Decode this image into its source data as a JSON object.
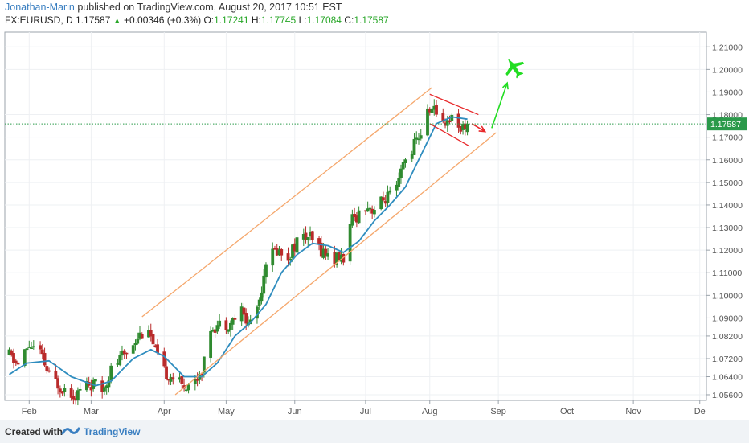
{
  "header": {
    "author": "Jonathan-Marin",
    "published": "published on TradingView.com, August 20, 2017 10:51 EST",
    "symbol": "FX:EURUSD, D",
    "last": "1.17587",
    "change": "+0.00346 (+0.3%)",
    "o_label": "O:",
    "o": "1.17241",
    "h_label": "H:",
    "h": "1.17745",
    "l_label": "L:",
    "l": "1.17084",
    "c_label": "C:",
    "c": "1.17587"
  },
  "footer": {
    "created_with": "Created with",
    "brand": "TradingView"
  },
  "colors": {
    "up": "#2f8a2f",
    "down": "#b92a2a",
    "ma": "#2f8dbf",
    "channel": "#f5a76c",
    "flag": "#e8282a",
    "green_annotation": "#22dd22",
    "price_tag": "#2a9a4a"
  },
  "chart_data": {
    "type": "candlestick",
    "symbol": "EURUSD",
    "timeframe": "D",
    "y_axis_side": "right",
    "ylim": [
      1.0535,
      1.2165
    ],
    "y_ticks": [
      "1.21000",
      "1.20000",
      "1.19000",
      "1.18000",
      "1.17000",
      "1.16000",
      "1.15000",
      "1.14000",
      "1.13000",
      "1.12000",
      "1.11000",
      "1.10000",
      "1.09000",
      "1.08200",
      "1.07200",
      "1.06400",
      "1.05600"
    ],
    "x_ticks": [
      {
        "label": "Feb",
        "date": "2017-02-01"
      },
      {
        "label": "Mar",
        "date": "2017-03-01"
      },
      {
        "label": "Apr",
        "date": "2017-04-03"
      },
      {
        "label": "May",
        "date": "2017-05-01"
      },
      {
        "label": "Jun",
        "date": "2017-06-01"
      },
      {
        "label": "Jul",
        "date": "2017-07-03"
      },
      {
        "label": "Aug",
        "date": "2017-08-01"
      },
      {
        "label": "Sep",
        "date": "2017-09-01"
      },
      {
        "label": "Oct",
        "date": "2017-10-02"
      },
      {
        "label": "Nov",
        "date": "2017-11-01"
      },
      {
        "label": "De",
        "date": "2017-12-01"
      }
    ],
    "x_range": [
      "2017-01-21",
      "2017-12-04"
    ],
    "last_price": 1.17587,
    "last_price_label": "1.17587",
    "close_path": [
      [
        "2017-01-23",
        1.0735
      ],
      [
        "2017-01-27",
        1.069
      ],
      [
        "2017-02-01",
        1.078
      ],
      [
        "2017-02-06",
        1.0745
      ],
      [
        "2017-02-10",
        1.064
      ],
      [
        "2017-02-15",
        1.06
      ],
      [
        "2017-02-22",
        1.056
      ],
      [
        "2017-02-27",
        1.061
      ],
      [
        "2017-03-03",
        1.06
      ],
      [
        "2017-03-06",
        1.058
      ],
      [
        "2017-03-10",
        1.067
      ],
      [
        "2017-03-16",
        1.074
      ],
      [
        "2017-03-22",
        1.082
      ],
      [
        "2017-03-27",
        1.086
      ],
      [
        "2017-03-29",
        1.077
      ],
      [
        "2017-04-03",
        1.066
      ],
      [
        "2017-04-07",
        1.064
      ],
      [
        "2017-04-11",
        1.06
      ],
      [
        "2017-04-17",
        1.062
      ],
      [
        "2017-04-21",
        1.07
      ],
      [
        "2017-04-24",
        1.086
      ],
      [
        "2017-04-28",
        1.087
      ],
      [
        "2017-05-03",
        1.088
      ],
      [
        "2017-05-08",
        1.093
      ],
      [
        "2017-05-11",
        1.087
      ],
      [
        "2017-05-16",
        1.098
      ],
      [
        "2017-05-19",
        1.116
      ],
      [
        "2017-05-24",
        1.12
      ],
      [
        "2017-05-29",
        1.117
      ],
      [
        "2017-06-02",
        1.124
      ],
      [
        "2017-06-07",
        1.126
      ],
      [
        "2017-06-13",
        1.12
      ],
      [
        "2017-06-19",
        1.116
      ],
      [
        "2017-06-23",
        1.117
      ],
      [
        "2017-06-27",
        1.133
      ],
      [
        "2017-07-03",
        1.14
      ],
      [
        "2017-07-07",
        1.138
      ],
      [
        "2017-07-12",
        1.143
      ],
      [
        "2017-07-17",
        1.146
      ],
      [
        "2017-07-20",
        1.158
      ],
      [
        "2017-07-24",
        1.165
      ],
      [
        "2017-07-28",
        1.172
      ],
      [
        "2017-08-01",
        1.183
      ],
      [
        "2017-08-04",
        1.181
      ],
      [
        "2017-08-08",
        1.177
      ],
      [
        "2017-08-11",
        1.179
      ],
      [
        "2017-08-16",
        1.174
      ],
      [
        "2017-08-18",
        1.17587
      ]
    ],
    "moving_average": [
      [
        "2017-01-23",
        1.065
      ],
      [
        "2017-01-31",
        1.07
      ],
      [
        "2017-02-10",
        1.071
      ],
      [
        "2017-02-20",
        1.064
      ],
      [
        "2017-03-03",
        1.06
      ],
      [
        "2017-03-10",
        1.062
      ],
      [
        "2017-03-20",
        1.072
      ],
      [
        "2017-03-28",
        1.076
      ],
      [
        "2017-04-03",
        1.073
      ],
      [
        "2017-04-12",
        1.064
      ],
      [
        "2017-04-20",
        1.064
      ],
      [
        "2017-04-27",
        1.07
      ],
      [
        "2017-05-05",
        1.082
      ],
      [
        "2017-05-12",
        1.088
      ],
      [
        "2017-05-19",
        1.096
      ],
      [
        "2017-05-26",
        1.11
      ],
      [
        "2017-06-02",
        1.118
      ],
      [
        "2017-06-09",
        1.123
      ],
      [
        "2017-06-16",
        1.122
      ],
      [
        "2017-06-23",
        1.119
      ],
      [
        "2017-06-30",
        1.124
      ],
      [
        "2017-07-07",
        1.133
      ],
      [
        "2017-07-14",
        1.14
      ],
      [
        "2017-07-21",
        1.148
      ],
      [
        "2017-07-28",
        1.162
      ],
      [
        "2017-08-04",
        1.176
      ],
      [
        "2017-08-11",
        1.179
      ],
      [
        "2017-08-18",
        1.178
      ]
    ],
    "annotations": {
      "channel_upper": [
        [
          "2017-03-24",
          1.0905
        ],
        [
          "2017-08-02",
          1.192
        ]
      ],
      "channel_lower": [
        [
          "2017-04-08",
          1.056
        ],
        [
          "2017-08-31",
          1.172
        ]
      ],
      "flag_upper": [
        [
          "2017-08-01",
          1.189
        ],
        [
          "2017-08-23",
          1.18
        ]
      ],
      "flag_lower": [
        [
          "2017-08-01",
          1.176
        ],
        [
          "2017-08-19",
          1.166
        ]
      ],
      "arrow_down_red": [
        [
          "2017-08-20",
          1.176
        ],
        [
          "2017-08-26",
          1.1725
        ]
      ],
      "arrow_up_green": [
        [
          "2017-08-29",
          1.174
        ],
        [
          "2017-09-05",
          1.194
        ]
      ],
      "plane_icon": "airplane-icon",
      "plane_at": [
        "2017-09-08",
        1.201
      ]
    }
  }
}
